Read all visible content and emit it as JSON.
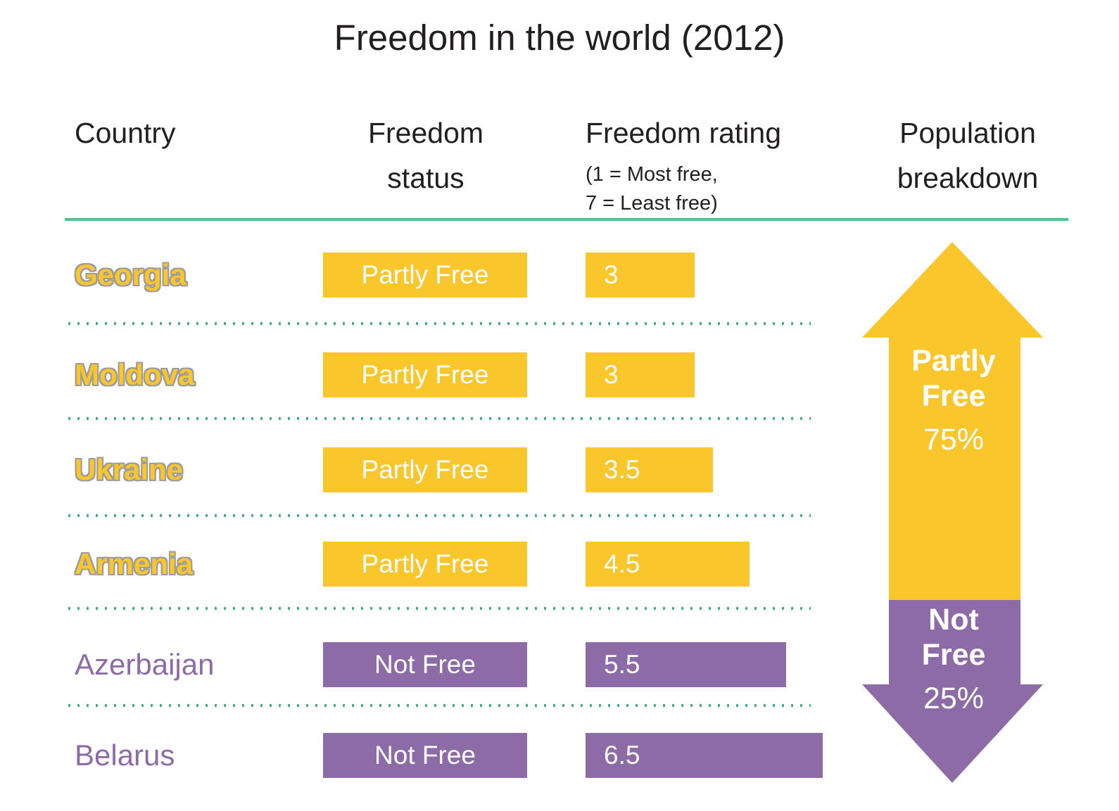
{
  "title": "Freedom in the world (2012)",
  "colors": {
    "partly_free_yellow": "#F9C62B",
    "not_free_purple": "#8D6BA6",
    "header_rule_green": "#5FBA8D",
    "separator_dot_green": "#3FAA82",
    "text_black": "#231F20",
    "country_outline_gray": "#9C9C9C",
    "bar_text_white": "#FFFFFF"
  },
  "header": {
    "country": "Country",
    "status_line1": "Freedom",
    "status_line2": "status",
    "rating": "Freedom rating",
    "rating_note_line1": "(1 = Most free,",
    "rating_note_line2": "7 = Least free)",
    "population_line1": "Population",
    "population_line2": "breakdown"
  },
  "population_arrow": {
    "partly_free_label_line1": "Partly",
    "partly_free_label_line2": "Free",
    "partly_free_percent": "75%",
    "not_free_label_line1": "Not",
    "not_free_label_line2": "Free",
    "not_free_percent": "25%"
  },
  "chart_data": {
    "type": "table",
    "title": "Freedom in the world (2012)",
    "columns": [
      "Country",
      "Freedom status",
      "Freedom rating (1 = Most free, 7 = Least free)",
      "Population breakdown"
    ],
    "rating_scale": {
      "min": 1,
      "max": 7,
      "min_label": "Most free",
      "max_label": "Least free"
    },
    "rows": [
      {
        "country": "Georgia",
        "status": "Partly Free",
        "rating": 3,
        "rating_label": "3",
        "status_type": "partly_free"
      },
      {
        "country": "Moldova",
        "status": "Partly Free",
        "rating": 3,
        "rating_label": "3",
        "status_type": "partly_free"
      },
      {
        "country": "Ukraine",
        "status": "Partly Free",
        "rating": 3.5,
        "rating_label": "3.5",
        "status_type": "partly_free"
      },
      {
        "country": "Armenia",
        "status": "Partly Free",
        "rating": 4.5,
        "rating_label": "4.5",
        "status_type": "partly_free"
      },
      {
        "country": "Azerbaijan",
        "status": "Not Free",
        "rating": 5.5,
        "rating_label": "5.5",
        "status_type": "not_free"
      },
      {
        "country": "Belarus",
        "status": "Not Free",
        "rating": 6.5,
        "rating_label": "6.5",
        "status_type": "not_free"
      }
    ],
    "population_breakdown": [
      {
        "label": "Partly Free",
        "percent": 75
      },
      {
        "label": "Not Free",
        "percent": 25
      }
    ],
    "legend_position": "right",
    "grid": false
  }
}
